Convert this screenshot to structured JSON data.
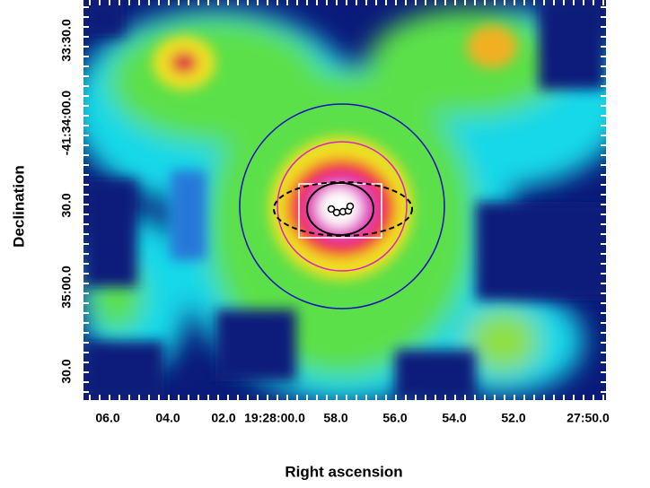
{
  "chart_data": {
    "type": "image",
    "x_label": "Right ascension",
    "y_label": "Declination",
    "xtick_labels": [
      "06.0",
      "04.0",
      "02.0",
      "19:28:00.0",
      "58.0",
      "56.0",
      "54.0",
      "52.0",
      "27:50.0"
    ],
    "ytick_labels": [
      "33:30.0",
      "-41:34:00.0",
      "30.0",
      "35:00.0",
      "30.0"
    ]
  }
}
